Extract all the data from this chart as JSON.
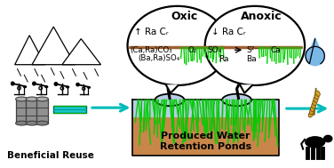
{
  "bg_color": "#ffffff",
  "oxic_label": "Oxic",
  "anoxic_label": "Anoxic",
  "ra_cr_oxic": "↑ Ra Cᵣ",
  "ra_cr_anoxic": "↓ Ra Cᵣ",
  "oxic_line1": "(Ca,Ra)CO₃",
  "oxic_line2": "(Ba,Ra)SO₄",
  "oxic_o2": "O₂",
  "anoxic_so4": "SO₄",
  "anoxic_s2": "S²⁻",
  "anoxic_ca": "Ca",
  "anoxic_ra": "Ra",
  "anoxic_ba": "Ba",
  "pond_label1": "Produced Water",
  "pond_label2": "Retention Ponds",
  "beneficial_reuse": "Beneficial Reuse",
  "sediment_color": "#c8864a",
  "water_top_color": "#b8cce4",
  "grass_color": "#00cc00",
  "barrel_color": "#909090",
  "arrow_color": "#00bbbb",
  "drop_color": "#7ab8e8",
  "wheat_color": "#d4a020",
  "bubble_tail_color": "#111111",
  "sediment_line_color": "#a06030"
}
